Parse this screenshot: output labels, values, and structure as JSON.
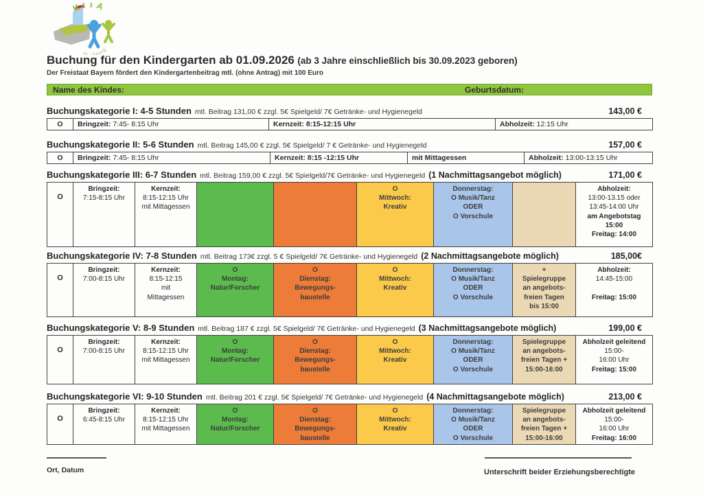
{
  "header": {
    "title": "Buchung für den Kindergarten ab 01.09.2026",
    "title_note": "(ab 3 Jahre einschließlich bis 30.09.2023 geboren)",
    "subtitle": "Der Freistaat Bayern fördert den Kindergartenbeitrag mtl. (ohne Antrag) mit 100 Euro"
  },
  "logo": {
    "arc_text": "KITA",
    "bottom_text": "St. Georg"
  },
  "name_bar": {
    "name_label": "Name des Kindes:",
    "birth_label": "Geburtsdatum:",
    "bar_color": "#8fc63e"
  },
  "palette": {
    "green": "#5bbb4d",
    "orange": "#ec7c38",
    "yellow": "#fbca4a",
    "blue": "#a9c5e9",
    "tan": "#ebd9b5",
    "header_green": "#8fc63e"
  },
  "categories": [
    {
      "title": "Buchungskategorie I: 4-5 Stunden",
      "details": "mtl. Beitrag 131,00 € zzgl. 5€ Spielgeld/ 7€ Getränke- und Hygienegeld",
      "highlight": "",
      "price": "143,00 €",
      "mark": "O",
      "cells": [
        {
          "label": "Bringzeit:",
          "value": "7:45- 8:15 Uhr"
        },
        {
          "label": "Kernzeit:",
          "value": "8:15-12:15 Uhr"
        },
        {
          "label": "Abholzeit:",
          "value": "12:15 Uhr"
        }
      ]
    },
    {
      "title": "Buchungskategorie II: 5-6 Stunden",
      "details": "mtl. Beitrag 145,00 € zzgl. 5€ Spielgeld/ 7 € Getränke- und Hygienegeld",
      "highlight": "",
      "price": "157,00 €",
      "mark": "O",
      "cells": [
        {
          "label": "Bringzeit:",
          "value": "7:45- 8:15 Uhr"
        },
        {
          "label": "Kernzeit:",
          "value": "8:15 -12:15 Uhr"
        },
        {
          "label": "mit Mittagessen",
          "value": ""
        },
        {
          "label": "Abholzeit:",
          "value": "13:00-13:15 Uhr"
        }
      ]
    },
    {
      "title": "Buchungskategorie III: 6-7 Stunden",
      "details": "mtl. Beitrag 159,00 € zzgl. 5€ Spielgeld/7€ Getränke- und Hygienegeld",
      "highlight": "(1 Nachmittagsangebot möglich)",
      "price": "171,00 €",
      "cells": [
        {
          "lines": [
            "O"
          ]
        },
        {
          "lines": [
            "Bringzeit:",
            "7:15-8:15 Uhr"
          ]
        },
        {
          "lines": [
            "Kernzeit:",
            "8:15-12:15 Uhr",
            "mit Mittagessen"
          ]
        },
        {
          "lines": []
        },
        {
          "lines": []
        },
        {
          "lines": [
            "O",
            "Mittwoch:",
            "Kreativ"
          ]
        },
        {
          "lines": [
            "Donnerstag:",
            "O Musik/Tanz",
            "ODER",
            "O Vorschule"
          ]
        },
        {
          "lines": []
        },
        {
          "lines": [
            "Abholzeit:",
            "13:00-13.15 oder",
            "13:45-14:00 Uhr",
            "am Angebotstag",
            "15:00",
            "Freitag: 14:00"
          ]
        }
      ]
    },
    {
      "title": "Buchungskategorie IV: 7-8 Stunden",
      "details": "mtl. Beitrag 173€ zzgl. 5 € Spielgeld/ 7€ Getränke- und Hygienegeld",
      "highlight": "(2 Nachmittagsangebote möglich)",
      "price": "185,00€",
      "cells": [
        {
          "lines": [
            "O"
          ]
        },
        {
          "lines": [
            "Bringzeit:",
            "7:00-8:15 Uhr"
          ]
        },
        {
          "lines": [
            "Kernzeit:",
            "8:15-12:15",
            "mit",
            "Mittagessen"
          ]
        },
        {
          "lines": [
            "O",
            "Montag:",
            "Natur/Forscher"
          ]
        },
        {
          "lines": [
            "O",
            "Dienstag:",
            "Bewegungs-",
            "baustelle"
          ]
        },
        {
          "lines": [
            "O",
            "Mittwoch:",
            "Kreativ"
          ]
        },
        {
          "lines": [
            "Donnerstag:",
            "O Musik/Tanz",
            "ODER",
            "O Vorschule"
          ]
        },
        {
          "lines": [
            "+",
            "Spielegruppe",
            "an angebots-",
            "freien Tagen",
            "bis 15:00"
          ]
        },
        {
          "lines": [
            "Abholzeit:",
            "14:45-15:00",
            "",
            "Freitag: 15:00"
          ]
        }
      ]
    },
    {
      "title": "Buchungskategorie V: 8-9 Stunden",
      "details": "mtl. Beitrag 187 € zzgl. 5€ Spielgeld/ 7€ Getränke- und Hygienegeld",
      "highlight": "(3 Nachmittagsangebote möglich)",
      "price": "199,00 €",
      "cells": [
        {
          "lines": [
            "O"
          ]
        },
        {
          "lines": [
            "Bringzeit:",
            "7:00-8:15 Uhr"
          ]
        },
        {
          "lines": [
            "Kernzeit:",
            "8:15-12:15 Uhr",
            "mit Mittagessen"
          ]
        },
        {
          "lines": [
            "O",
            "Montag:",
            "Natur/Forscher"
          ]
        },
        {
          "lines": [
            "O",
            "Dienstag:",
            "Bewegungs-",
            "baustelle"
          ]
        },
        {
          "lines": [
            "O",
            "Mittwoch:",
            "Kreativ"
          ]
        },
        {
          "lines": [
            "Donnerstag:",
            "O Musik/Tanz",
            "ODER",
            "O Vorschule"
          ]
        },
        {
          "lines": [
            "Spielegruppe",
            "an angebots-",
            "freien Tagen +",
            "15:00-16:00"
          ]
        },
        {
          "lines": [
            "Abholzeit geleitend",
            "15:00-",
            "16:00 Uhr",
            "Freitag: 15:00"
          ]
        }
      ]
    },
    {
      "title": "Buchungskategorie VI: 9-10 Stunden",
      "details": "mtl. Beitrag 201 € zzgl. 5€ Spielgeld/ 7€ Getränke- und Hygienegeld",
      "highlight": "(4 Nachmittagsangebote möglich)",
      "price": "213,00 €",
      "cells": [
        {
          "lines": [
            "O"
          ]
        },
        {
          "lines": [
            "Bringzeit:",
            "6:45-8:15 Uhr"
          ]
        },
        {
          "lines": [
            "Kernzeit:",
            "8:15-12:15 Uhr",
            "mit Mittagessen"
          ]
        },
        {
          "lines": [
            "O",
            "Montag:",
            "Natur/Forscher"
          ]
        },
        {
          "lines": [
            "O",
            "Dienstag:",
            "Bewegungs-",
            "baustelle"
          ]
        },
        {
          "lines": [
            "O",
            "Mittwoch:",
            "Kreativ"
          ]
        },
        {
          "lines": [
            "Donnerstag:",
            "O Musik/Tanz",
            "ODER",
            "O Vorschule"
          ]
        },
        {
          "lines": [
            "Spielegruppe",
            "an angebots-",
            "freien Tagen +",
            "15:00-16:00"
          ]
        },
        {
          "lines": [
            "Abholzeit geleitend",
            "15:00-",
            "16:00 Uhr",
            "Freitag: 16:00"
          ]
        }
      ]
    }
  ],
  "footer": {
    "left_label": "Ort, Datum",
    "right_label": "Unterschrift beider Erziehungsberechtigte"
  }
}
